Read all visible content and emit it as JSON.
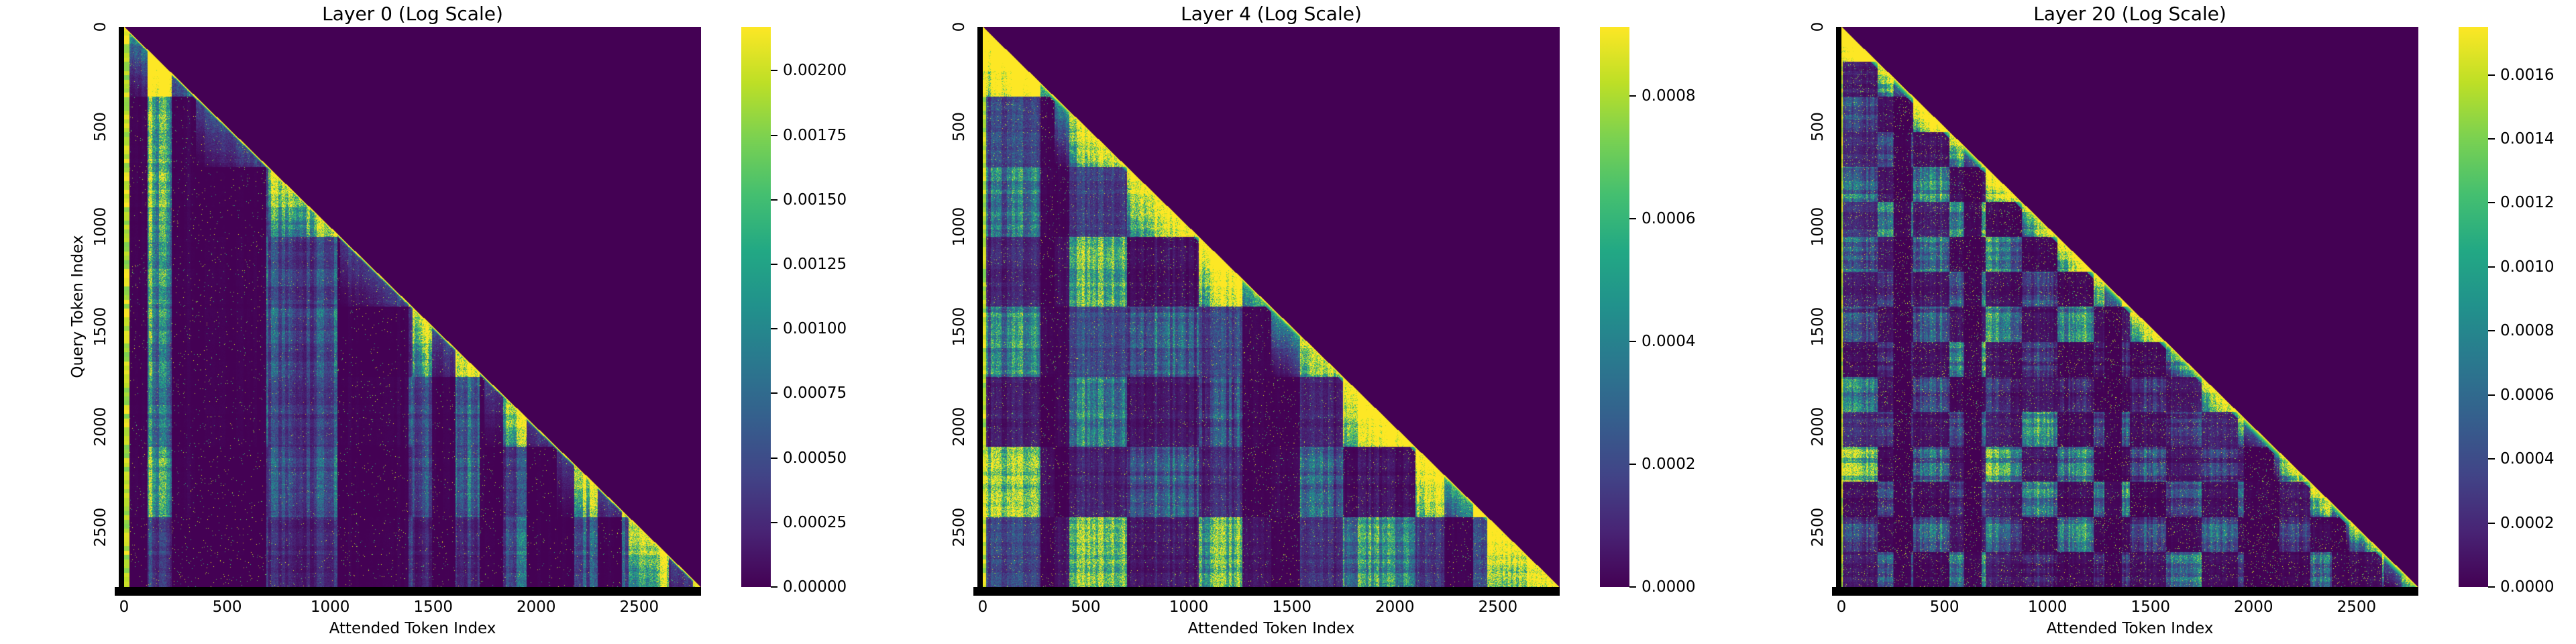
{
  "figure": {
    "background_color": "#ffffff",
    "text_color": "#000000",
    "xlabel": "Attended Token Index",
    "ylabel": "Query Token Index",
    "n_tokens": 2800,
    "x_tick_labels": [
      "0",
      "500",
      "1000",
      "1500",
      "2000",
      "2500"
    ],
    "x_tick_values": [
      0,
      500,
      1000,
      1500,
      2000,
      2500
    ],
    "y_tick_labels": [
      "0",
      "500",
      "1000",
      "1500",
      "2000",
      "2500"
    ],
    "y_tick_values": [
      0,
      500,
      1000,
      1500,
      2000,
      2500
    ],
    "colormap": "viridis",
    "colormap_stops": [
      [
        0.0,
        "#440154"
      ],
      [
        0.1,
        "#482475"
      ],
      [
        0.2,
        "#414487"
      ],
      [
        0.3,
        "#355f8d"
      ],
      [
        0.4,
        "#2a788e"
      ],
      [
        0.5,
        "#21918c"
      ],
      [
        0.6,
        "#22a884"
      ],
      [
        0.7,
        "#44bf70"
      ],
      [
        0.8,
        "#7ad151"
      ],
      [
        0.9,
        "#bddf26"
      ],
      [
        1.0,
        "#fde725"
      ]
    ]
  },
  "panels": [
    {
      "title": "Layer 0 (Log Scale)",
      "colorbar": {
        "vmax": 0.00217,
        "vmin": 0.0,
        "tick_labels": [
          "0.00200",
          "0.00175",
          "0.00150",
          "0.00125",
          "0.00100",
          "0.00075",
          "0.00050",
          "0.00025",
          "0.00000"
        ],
        "tick_values": [
          0.002,
          0.00175,
          0.0015,
          0.00125,
          0.001,
          0.00075,
          0.0005,
          0.00025,
          0.0
        ]
      },
      "texture": {
        "seed": 11,
        "block": 350,
        "fine": 17,
        "band": 115,
        "wFine": 0.5,
        "wBand": 0.55,
        "wBlock": 0.4,
        "wRow": 0.18,
        "checker": 0.18,
        "darkBand": 0.36,
        "sameBlock": 0.32,
        "leftZone": 0.18,
        "leftBoost": 0.5,
        "decay": 0.12,
        "gamma": 2.4,
        "bright": 1.35,
        "speckle": 0.012,
        "sink": 26,
        "diagGlow": 14
      }
    },
    {
      "title": "Layer 4 (Log Scale)",
      "colorbar": {
        "vmax": 0.000912,
        "vmin": 0.0,
        "tick_labels": [
          "0.0008",
          "0.0006",
          "0.0004",
          "0.0002",
          "0.0000"
        ],
        "tick_values": [
          0.0008,
          0.0006,
          0.0004,
          0.0002,
          0.0
        ]
      },
      "texture": {
        "seed": 23,
        "block": 350,
        "fine": 13,
        "band": 140,
        "wFine": 0.4,
        "wBand": 0.35,
        "wBlock": 0.55,
        "wRow": 0.2,
        "checker": 0.5,
        "darkBand": 0.22,
        "sameBlock": 0.5,
        "leftZone": 0.1,
        "leftBoost": 0.35,
        "decay": 0.05,
        "gamma": 1.9,
        "bright": 1.5,
        "speckle": 0.02,
        "sink": 16,
        "diagGlow": 26
      }
    },
    {
      "title": "Layer 20 (Log Scale)",
      "colorbar": {
        "vmax": 0.00175,
        "vmin": 0.0,
        "tick_labels": [
          "0.0016",
          "0.0014",
          "0.0012",
          "0.0010",
          "0.0008",
          "0.0006",
          "0.0004",
          "0.0002",
          "0.0000"
        ],
        "tick_values": [
          0.0016,
          0.0014,
          0.0012,
          0.001,
          0.0008,
          0.0006,
          0.0004,
          0.0002,
          0.0
        ]
      },
      "texture": {
        "seed": 47,
        "block": 175,
        "fine": 10,
        "band": 85,
        "wFine": 0.32,
        "wBand": 0.28,
        "wBlock": 0.55,
        "wRow": 0.3,
        "checker": 0.55,
        "darkBand": 0.18,
        "sameBlock": 0.55,
        "leftZone": 0.08,
        "leftBoost": 0.25,
        "decay": 0.0,
        "gamma": 2.3,
        "bright": 1.15,
        "speckle": 0.035,
        "sink": 8,
        "diagGlow": 34
      }
    }
  ],
  "chart_data": [
    {
      "type": "heatmap",
      "title": "Layer 0 (Log Scale)",
      "xlabel": "Attended Token Index",
      "ylabel": "Query Token Index",
      "x_range": [
        0,
        2800
      ],
      "y_range": [
        0,
        2800
      ],
      "y_direction": "down",
      "x_ticks": [
        0,
        500,
        1000,
        1500,
        2000,
        2500
      ],
      "y_ticks": [
        0,
        500,
        1000,
        1500,
        2000,
        2500
      ],
      "colormap": "viridis",
      "colorbar_ticks": [
        0.002,
        0.00175,
        0.0015,
        0.00125,
        0.001,
        0.00075,
        0.0005,
        0.00025,
        0.0
      ],
      "value_range": [
        0.0,
        0.00217
      ],
      "structure": "Causal lower-triangular attention matrix: upper triangle masked at 0; bright yellow main diagonal; bright attention-sink columns at token 0; strong vertical token stripes; ~350-token document blocks with brighter same-block triangles along the diagonal"
    },
    {
      "type": "heatmap",
      "title": "Layer 4 (Log Scale)",
      "xlabel": "Attended Token Index",
      "ylabel": "Query Token Index",
      "x_range": [
        0,
        2800
      ],
      "y_range": [
        0,
        2800
      ],
      "y_direction": "down",
      "x_ticks": [
        0,
        500,
        1000,
        1500,
        2000,
        2500
      ],
      "y_ticks": [
        0,
        500,
        1000,
        1500,
        2000,
        2500
      ],
      "colormap": "viridis",
      "colorbar_ticks": [
        0.0008,
        0.0006,
        0.0004,
        0.0002,
        0.0
      ],
      "value_range": [
        0.0,
        0.000912
      ],
      "structure": "Causal lower-triangular attention matrix with pronounced ~350-token checkerboard block pattern, bright sink column at token 0 and broad yellow diagonal band"
    },
    {
      "type": "heatmap",
      "title": "Layer 20 (Log Scale)",
      "xlabel": "Attended Token Index",
      "ylabel": "Query Token Index",
      "x_range": [
        0,
        2800
      ],
      "y_range": [
        0,
        2800
      ],
      "y_direction": "down",
      "x_ticks": [
        0,
        500,
        1000,
        1500,
        2000,
        2500
      ],
      "y_ticks": [
        0,
        500,
        1000,
        1500,
        2000,
        2500
      ],
      "colormap": "viridis",
      "colorbar_ticks": [
        0.0016,
        0.0014,
        0.0012,
        0.001,
        0.0008,
        0.0006,
        0.0004,
        0.0002,
        0.0
      ],
      "value_range": [
        0.0,
        0.00175
      ],
      "structure": "Causal lower-triangular attention matrix with fine ~175-token checkerboard blocks, sparse speckled texture and strong yellow concentration near the diagonal"
    }
  ]
}
